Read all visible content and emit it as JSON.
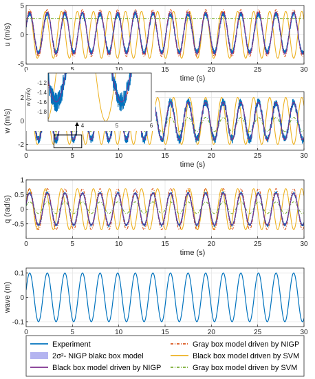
{
  "colors": {
    "experiment": "#0072BD",
    "gray_nigp": "#D95319",
    "black_svm": "#EDB120",
    "black_nigp": "#7E2F8E",
    "gray_svm": "#77AC30",
    "band": "#b4b4f0"
  },
  "legend": {
    "placement": "bottom",
    "items": [
      {
        "name": "Experiment",
        "color": "#0072BD",
        "style": "solid"
      },
      {
        "name": "Gray box model driven by NIGP",
        "color": "#D95319",
        "style": "dashdot"
      },
      {
        "name": "2σ²- NIGP blakc box model",
        "color": "#b4b4f0",
        "style": "patch"
      },
      {
        "name": "Black box model driven by SVM",
        "color": "#EDB120",
        "style": "solid"
      },
      {
        "name": "Black box model driven by NIGP",
        "color": "#7E2F8E",
        "style": "solid"
      },
      {
        "name": "Gray box model driven by SVM",
        "color": "#77AC30",
        "style": "dashdot"
      }
    ]
  },
  "chart_data": [
    {
      "type": "line",
      "ylabel": "u (m/s)",
      "xlabel": "time (s)",
      "xlim": [
        0,
        30
      ],
      "ylim": [
        -5,
        5
      ],
      "xticks": [
        "0",
        "5",
        "10",
        "15",
        "20",
        "25",
        "30"
      ],
      "yticks": [
        "-5",
        "0",
        "5"
      ],
      "grid": true,
      "series": [
        {
          "name": "Experiment",
          "kind": "sine",
          "amplitude": 3.3,
          "period": 1.9,
          "offset": 0.3,
          "noise": 0.4
        },
        {
          "name": "Gray box model driven by NIGP",
          "kind": "sine",
          "amplitude": 4.0,
          "period": 1.9,
          "offset": 0.3
        },
        {
          "name": "Black box model driven by NIGP",
          "kind": "sine",
          "amplitude": 3.6,
          "period": 1.9,
          "offset": 0.3
        },
        {
          "name": "Black box model driven by SVM",
          "kind": "sine",
          "amplitude": 4.0,
          "period": 1.73,
          "offset": 0.0
        },
        {
          "name": "Gray box model driven by SVM",
          "kind": "constant",
          "value": 2.8
        }
      ]
    },
    {
      "type": "line",
      "ylabel": "w (m/s)",
      "xlabel": "time (s)",
      "xlim": [
        0,
        30
      ],
      "ylim": [
        -2.5,
        2.5
      ],
      "xticks": [
        "0",
        "5",
        "10",
        "15",
        "20",
        "25",
        "30"
      ],
      "yticks": [
        "-2",
        "0",
        "2"
      ],
      "grid": true,
      "series": [
        {
          "name": "Experiment",
          "kind": "sine",
          "amplitude": 1.6,
          "period": 1.9,
          "offset": 0.0,
          "noise": 0.35
        },
        {
          "name": "Gray box model driven by NIGP",
          "kind": "sine",
          "amplitude": 1.7,
          "period": 1.9,
          "offset": 0.0
        },
        {
          "name": "Black box model driven by NIGP",
          "kind": "sine",
          "amplitude": 1.6,
          "period": 1.9,
          "offset": 0.0
        },
        {
          "name": "Black box model driven by SVM",
          "kind": "sine",
          "amplitude": 2.0,
          "period": 1.73,
          "offset": 0.0
        },
        {
          "name": "Gray box model driven by SVM",
          "kind": "sine",
          "amplitude": 0.6,
          "period": 1.9,
          "offset": -0.3
        }
      ],
      "inset": {
        "ylabel": "w (m/s)",
        "xlim": [
          3,
          6
        ],
        "ylim": [
          -2.0,
          -1.0
        ],
        "xticks": [
          "4",
          "5",
          "6"
        ],
        "yticks": [
          "-1.2",
          "-1.4",
          "-1.6",
          "-1.8"
        ]
      }
    },
    {
      "type": "line",
      "ylabel": "q (rad/s)",
      "xlabel": "time (s)",
      "xlim": [
        0,
        30
      ],
      "ylim": [
        -1.0,
        1.0
      ],
      "xticks": [
        "0",
        "5",
        "10",
        "15",
        "20",
        "25",
        "30"
      ],
      "yticks": [
        "-0.5",
        "0",
        "0.5",
        "1"
      ],
      "grid": true,
      "series": [
        {
          "name": "Experiment",
          "kind": "sine",
          "amplitude": 0.55,
          "period": 1.9,
          "offset": 0.0,
          "noise": 0.04
        },
        {
          "name": "Gray box model driven by NIGP",
          "kind": "sine",
          "amplitude": 0.7,
          "period": 1.9,
          "offset": 0.0
        },
        {
          "name": "Black box model driven by NIGP",
          "kind": "sine",
          "amplitude": 0.55,
          "period": 1.9,
          "offset": 0.0
        },
        {
          "name": "Black box model driven by SVM",
          "kind": "sine",
          "amplitude": 0.7,
          "period": 1.73,
          "offset": 0.0
        },
        {
          "name": "Gray box model driven by SVM",
          "kind": "sine",
          "amplitude": 0.2,
          "period": 1.9,
          "offset": 0.05
        }
      ]
    },
    {
      "type": "line",
      "ylabel": "wave (m)",
      "xlabel": "",
      "xlim": [
        0,
        30
      ],
      "ylim": [
        -0.12,
        0.12
      ],
      "xticks": [
        "0",
        "5",
        "10",
        "15",
        "20",
        "25",
        "30"
      ],
      "yticks": [
        "-0.1",
        "0",
        "0.1"
      ],
      "grid": true,
      "series": [
        {
          "name": "wave",
          "kind": "sine",
          "amplitude": 0.1,
          "period": 1.9,
          "offset": 0.0
        }
      ]
    }
  ]
}
